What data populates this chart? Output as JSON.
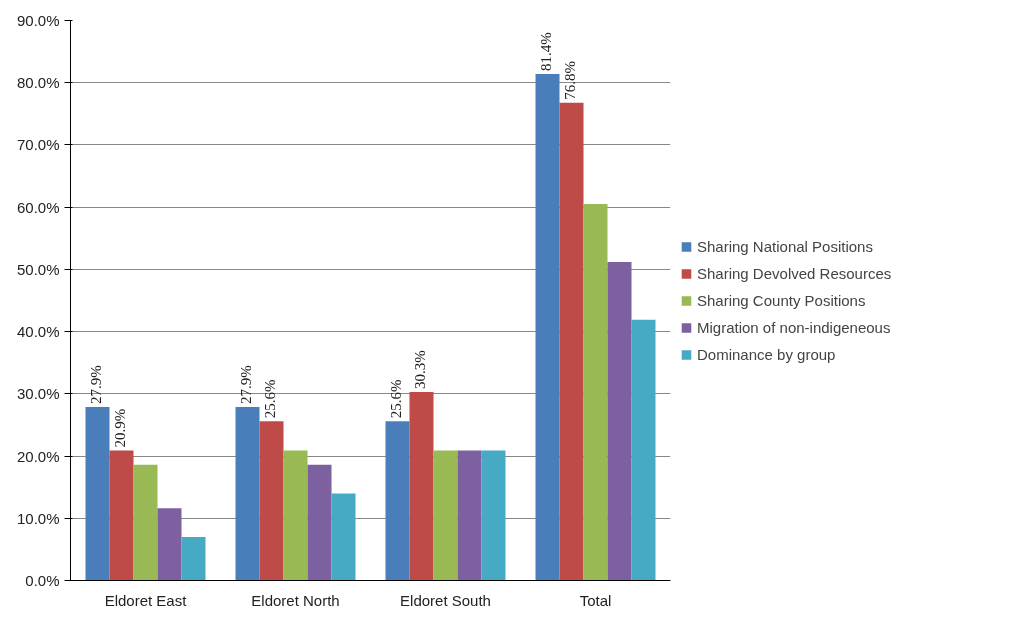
{
  "chart_data": {
    "type": "bar",
    "categories": [
      "Eldoret East",
      "Eldoret North",
      "Eldoret South",
      "Total"
    ],
    "series": [
      {
        "name": "Sharing National Positions",
        "color": "#4a7ebb",
        "values": [
          27.9,
          27.9,
          25.6,
          81.4
        ],
        "value_labels": [
          "27.9%",
          "27.9%",
          "25.6%",
          "81.4%"
        ]
      },
      {
        "name": "Sharing Devolved Resources",
        "color": "#be4b48",
        "values": [
          20.9,
          25.6,
          30.3,
          76.8
        ],
        "value_labels": [
          "20.9%",
          "25.6%",
          "30.3%",
          "76.8%"
        ]
      },
      {
        "name": "Sharing County Positions",
        "color": "#98b954",
        "values": [
          18.6,
          20.9,
          20.9,
          60.5
        ]
      },
      {
        "name": "Migration of non-indigeneous",
        "color": "#7d60a0",
        "values": [
          11.6,
          18.6,
          20.9,
          51.2
        ]
      },
      {
        "name": "Dominance by group",
        "color": "#46aac5",
        "values": [
          7.0,
          14.0,
          20.9,
          41.9
        ]
      }
    ],
    "ylim": [
      0,
      90
    ],
    "yticks": [
      {
        "value": 0,
        "label": "0.0%"
      },
      {
        "value": 10,
        "label": "10.0%"
      },
      {
        "value": 20,
        "label": "20.0%"
      },
      {
        "value": 30,
        "label": "30.0%"
      },
      {
        "value": 40,
        "label": "40.0%"
      },
      {
        "value": 50,
        "label": "50.0%"
      },
      {
        "value": 60,
        "label": "60.0%"
      },
      {
        "value": 70,
        "label": "70.0%"
      },
      {
        "value": 80,
        "label": "80.0%"
      },
      {
        "value": 90,
        "label": "90.0%"
      }
    ],
    "grid": "y",
    "legend": "right"
  }
}
